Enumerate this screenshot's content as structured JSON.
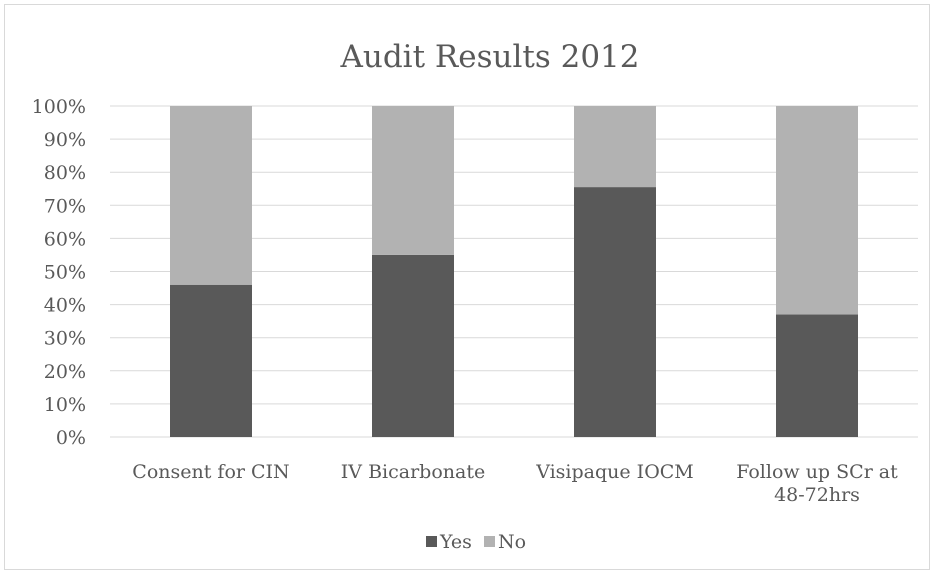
{
  "chart_data": {
    "type": "bar",
    "stacked": true,
    "stack_mode": "percent",
    "title": "Audit Results 2012",
    "categories": [
      [
        "Consent for CIN"
      ],
      [
        "IV Bicarbonate"
      ],
      [
        "Visipaque IOCM"
      ],
      [
        "Follow up SCr at",
        "48-72hrs"
      ]
    ],
    "series": [
      {
        "name": "Yes",
        "color": "#595959",
        "values": [
          46,
          55,
          75.5,
          37
        ]
      },
      {
        "name": "No",
        "color": "#b2b2b2",
        "values": [
          54,
          45,
          24.5,
          63
        ]
      }
    ],
    "y_ticks": [
      "0%",
      "10%",
      "20%",
      "30%",
      "40%",
      "50%",
      "60%",
      "70%",
      "80%",
      "90%",
      "100%"
    ],
    "ylim": [
      0,
      100
    ],
    "grid": true,
    "legend_position": "bottom"
  }
}
